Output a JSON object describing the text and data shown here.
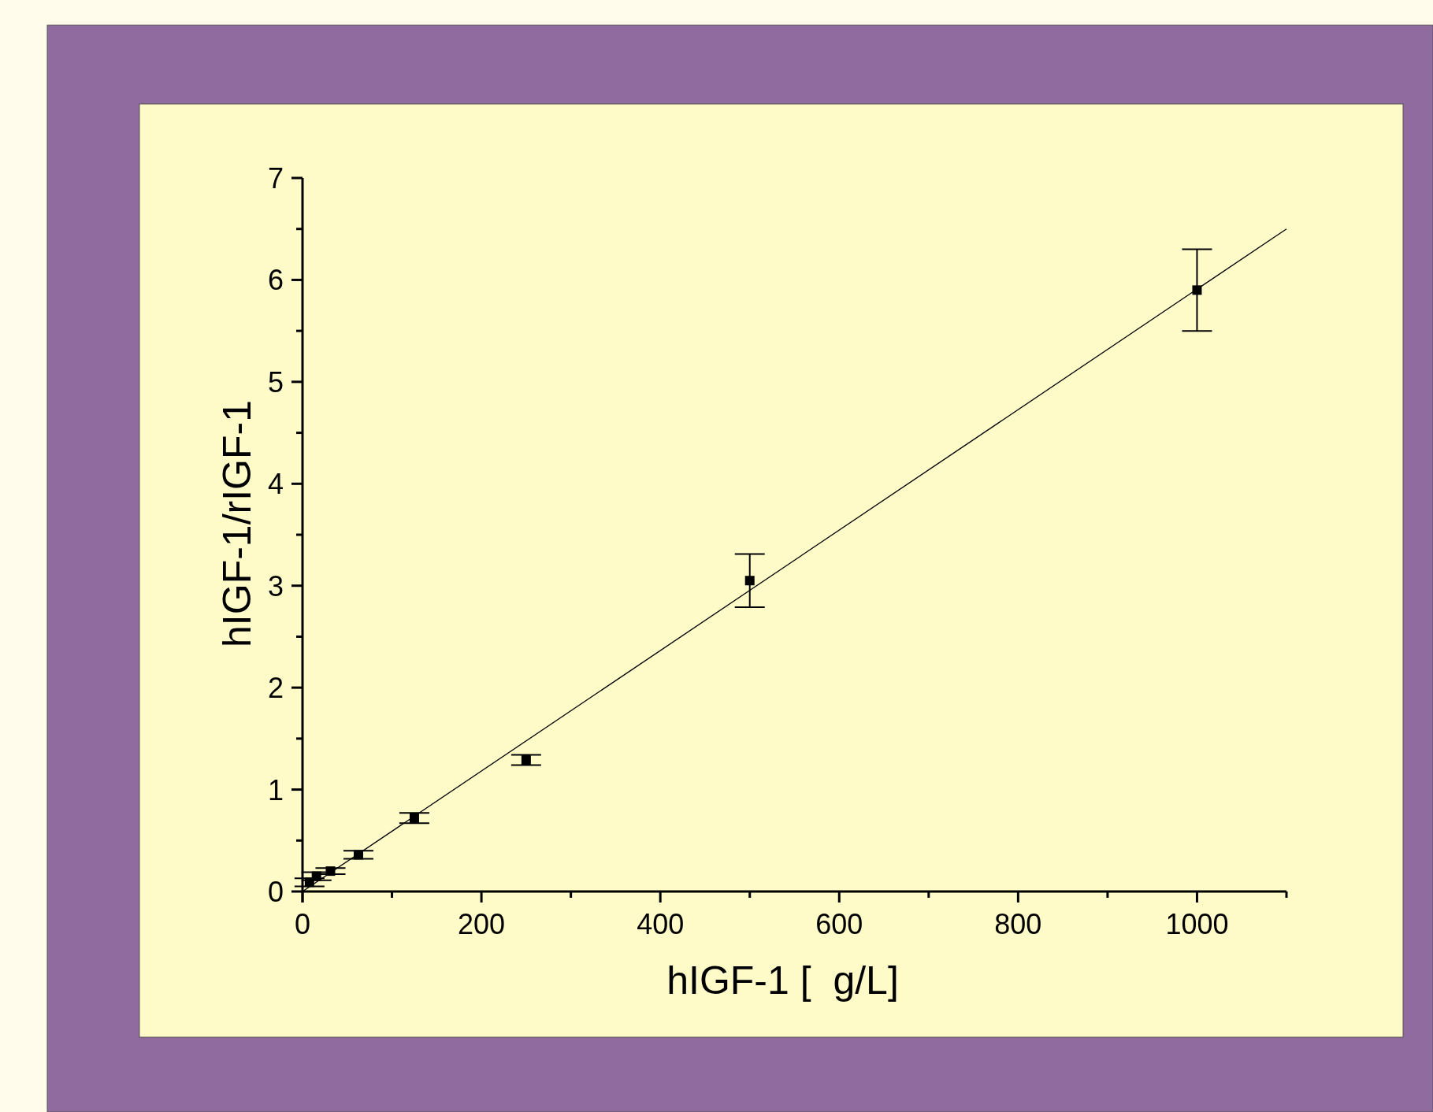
{
  "chart_data": {
    "type": "scatter",
    "xlabel": "hIGF-1 [  g/L]",
    "ylabel": "hIGF-1/rIGF-1",
    "xlim": [
      0,
      1100
    ],
    "xticks": [
      0,
      {
        "value": 100,
        "label": null
      },
      200,
      {
        "value": 300,
        "label": null
      },
      400,
      {
        "value": 500,
        "label": null
      },
      600,
      {
        "value": 700,
        "label": null
      },
      800,
      {
        "value": 900,
        "label": null
      },
      1000,
      {
        "value": 1100,
        "label": null
      }
    ],
    "ylim": [
      0,
      7
    ],
    "yticks": [
      0,
      {
        "value": 0.5,
        "label": null
      },
      1,
      {
        "value": 1.5,
        "label": null
      },
      2,
      {
        "value": 2.5,
        "label": null
      },
      3,
      {
        "value": 3.5,
        "label": null
      },
      4,
      {
        "value": 4.5,
        "label": null
      },
      5,
      {
        "value": 5.5,
        "label": null
      },
      6,
      {
        "value": 6.5,
        "label": null
      },
      7
    ],
    "grid": false,
    "marker": "square",
    "series": [
      {
        "color": "#000000",
        "x": [
          7.8,
          15.6,
          31.25,
          62.5,
          125,
          250,
          500,
          1000
        ],
        "values": [
          0.09,
          0.15,
          0.2,
          0.36,
          0.72,
          1.29,
          3.05,
          5.9
        ],
        "errors": [
          0.04,
          0.04,
          0.03,
          0.04,
          0.05,
          0.05,
          0.26,
          0.4
        ]
      },
      {
        "type": "line",
        "color": "#000000",
        "x": [
          0,
          1100
        ],
        "values": [
          0,
          6.5
        ],
        "marker": "none",
        "line_style": "solid"
      }
    ]
  }
}
